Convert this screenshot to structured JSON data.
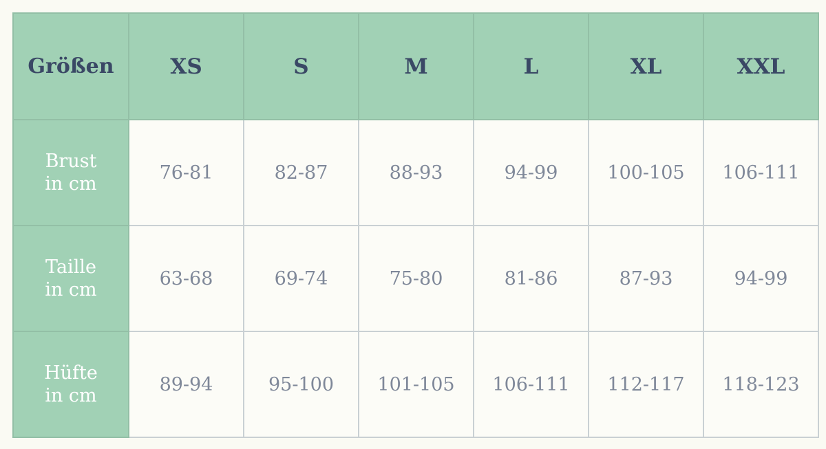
{
  "header": {
    "label": "Größen",
    "sizes": [
      "XS",
      "S",
      "M",
      "L",
      "XL",
      "XXL"
    ]
  },
  "rows": [
    {
      "label_line1": "Brust",
      "label_line2": "in cm",
      "values": [
        "76-81",
        "82-87",
        "88-93",
        "94-99",
        "100-105",
        "106-111"
      ]
    },
    {
      "label_line1": "Taille",
      "label_line2": "in cm",
      "values": [
        "63-68",
        "69-74",
        "75-80",
        "81-86",
        "87-93",
        "94-99"
      ]
    },
    {
      "label_line1": "Hüfte",
      "label_line2": "in cm",
      "values": [
        "89-94",
        "95-100",
        "101-105",
        "106-111",
        "112-117",
        "118-123"
      ]
    }
  ],
  "colors": {
    "header_bg": "#a1d1b5",
    "header_text": "#3a4865",
    "cell_bg": "#fcfcf7",
    "cell_text": "#7f8899"
  }
}
